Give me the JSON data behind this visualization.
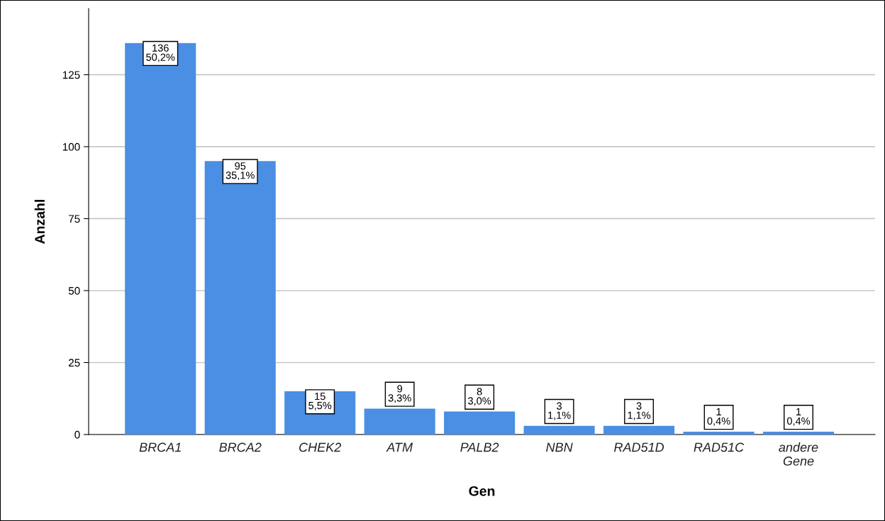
{
  "chart_data": {
    "type": "bar",
    "xlabel": "Gen",
    "ylabel": "Anzahl",
    "categories": [
      "BRCA1",
      "BRCA2",
      "CHEK2",
      "ATM",
      "PALB2",
      "NBN",
      "RAD51D",
      "RAD51C",
      "andere\nGene"
    ],
    "values": [
      136,
      95,
      15,
      9,
      8,
      3,
      3,
      1,
      1
    ],
    "value_labels": [
      "136\n50,2%",
      "95\n35,1%",
      "15\n5,5%",
      "9\n3,3%",
      "8\n3,0%",
      "3\n1,1%",
      "3\n1,1%",
      "1\n0,4%",
      "1\n0,4%"
    ],
    "color": "#4a8fe3",
    "ylim": [
      0,
      148
    ],
    "yticks": [
      0,
      25,
      50,
      75,
      100,
      125
    ],
    "grid": "y",
    "legend": false
  }
}
